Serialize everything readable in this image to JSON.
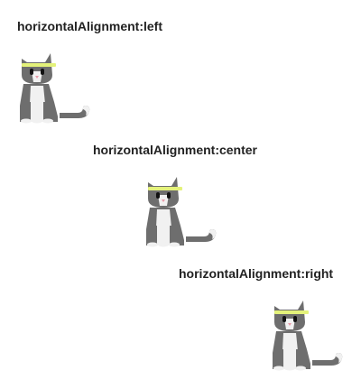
{
  "examples": [
    {
      "label": "horizontalAlignment:left"
    },
    {
      "label": "horizontalAlignment:center"
    },
    {
      "label": "horizontalAlignment:right"
    }
  ],
  "colors": {
    "fur": "#6e6e6e",
    "fur_light": "#f1f1f1",
    "headband": "#e4f27a",
    "nose": "#e89aa8",
    "eye": "#111111",
    "text": "#222222"
  },
  "icon": "cat-icon"
}
